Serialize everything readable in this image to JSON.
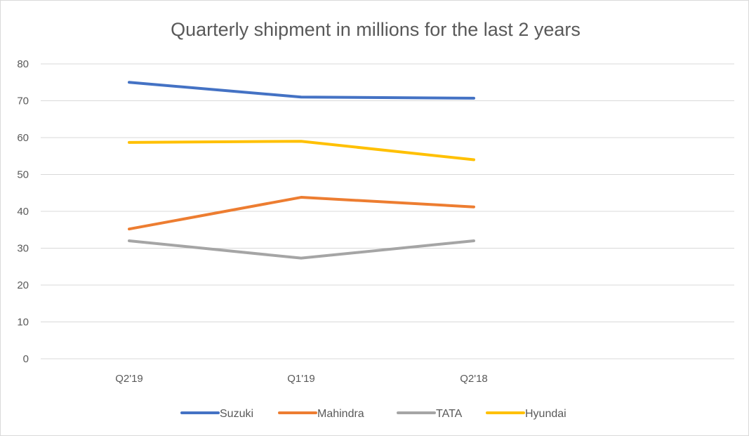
{
  "chart_data": {
    "type": "line",
    "title": "Quarterly shipment in millions for the last 2 years",
    "xlabel": "",
    "ylabel": "",
    "categories": [
      "Q2'19",
      "Q1'19",
      "Q2'18"
    ],
    "ylim": [
      0,
      80
    ],
    "yticks": [
      0,
      10,
      20,
      30,
      40,
      50,
      60,
      70,
      80
    ],
    "grid": true,
    "legend_position": "bottom",
    "series": [
      {
        "name": "Suzuki",
        "color": "#4472c4",
        "values": [
          75,
          71,
          70.7
        ]
      },
      {
        "name": "Mahindra",
        "color": "#ed7d31",
        "values": [
          35.2,
          43.8,
          41.2
        ]
      },
      {
        "name": "TATA",
        "color": "#a5a5a5",
        "values": [
          32,
          27.3,
          32
        ]
      },
      {
        "name": "Hyundai",
        "color": "#ffc000",
        "values": [
          58.7,
          59,
          54
        ]
      }
    ]
  }
}
